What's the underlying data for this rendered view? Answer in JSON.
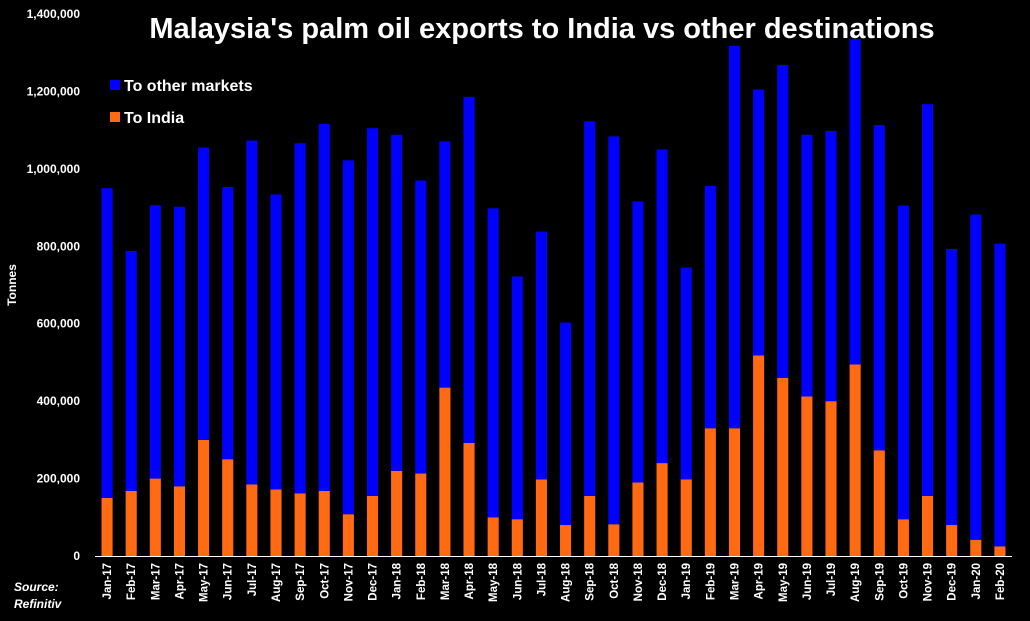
{
  "chart_data": {
    "type": "bar",
    "stacked": true,
    "title": "Malaysia's palm oil exports to India vs other destinations",
    "xlabel": "",
    "ylabel": "Tonnes",
    "ylim": [
      0,
      1400000
    ],
    "yticks": [
      0,
      200000,
      400000,
      600000,
      800000,
      1000000,
      1200000,
      1400000
    ],
    "ytick_labels": [
      "0",
      "200,000",
      "400,000",
      "600,000",
      "800,000",
      "1,000,000",
      "1,200,000",
      "1,400,000"
    ],
    "legend_position": "top-left",
    "categories": [
      "Jan-17",
      "Feb-17",
      "Mar-17",
      "Apr-17",
      "May-17",
      "Jun-17",
      "Jul-17",
      "Aug-17",
      "Sep-17",
      "Oct-17",
      "Nov-17",
      "Dec-17",
      "Jan-18",
      "Feb-18",
      "Mar-18",
      "Apr-18",
      "May-18",
      "Jun-18",
      "Jul-18",
      "Aug-18",
      "Sep-18",
      "Oct-18",
      "Nov-18",
      "Dec-18",
      "Jan-19",
      "Feb-19",
      "Mar-19",
      "Apr-19",
      "May-19",
      "Jun-19",
      "Jul-19",
      "Aug-19",
      "Sep-19",
      "Oct-19",
      "Nov-19",
      "Dec-19",
      "Jan-20",
      "Feb-20"
    ],
    "series": [
      {
        "name": "To India",
        "color": "#ff6a13",
        "values": [
          150000,
          168000,
          200000,
          180000,
          300000,
          250000,
          185000,
          172000,
          162000,
          168000,
          108000,
          155000,
          220000,
          213000,
          435000,
          292000,
          100000,
          95000,
          198000,
          80000,
          155000,
          82000,
          190000,
          240000,
          198000,
          330000,
          330000,
          518000,
          460000,
          412000,
          400000,
          495000,
          273000,
          95000,
          155000,
          80000,
          42000,
          25000
        ]
      },
      {
        "name": "To other markets",
        "color": "#0000ff",
        "values": [
          800000,
          620000,
          706000,
          722000,
          755000,
          703000,
          888000,
          762000,
          904000,
          948000,
          914000,
          950000,
          868000,
          757000,
          636000,
          894000,
          798000,
          627000,
          640000,
          523000,
          968000,
          1002000,
          726000,
          810000,
          547000,
          626000,
          988000,
          687000,
          808000,
          676000,
          698000,
          840000,
          840000,
          810000,
          1012000,
          713000,
          840000,
          782000
        ]
      }
    ],
    "source": [
      "Source:",
      "Refinitiv"
    ]
  }
}
